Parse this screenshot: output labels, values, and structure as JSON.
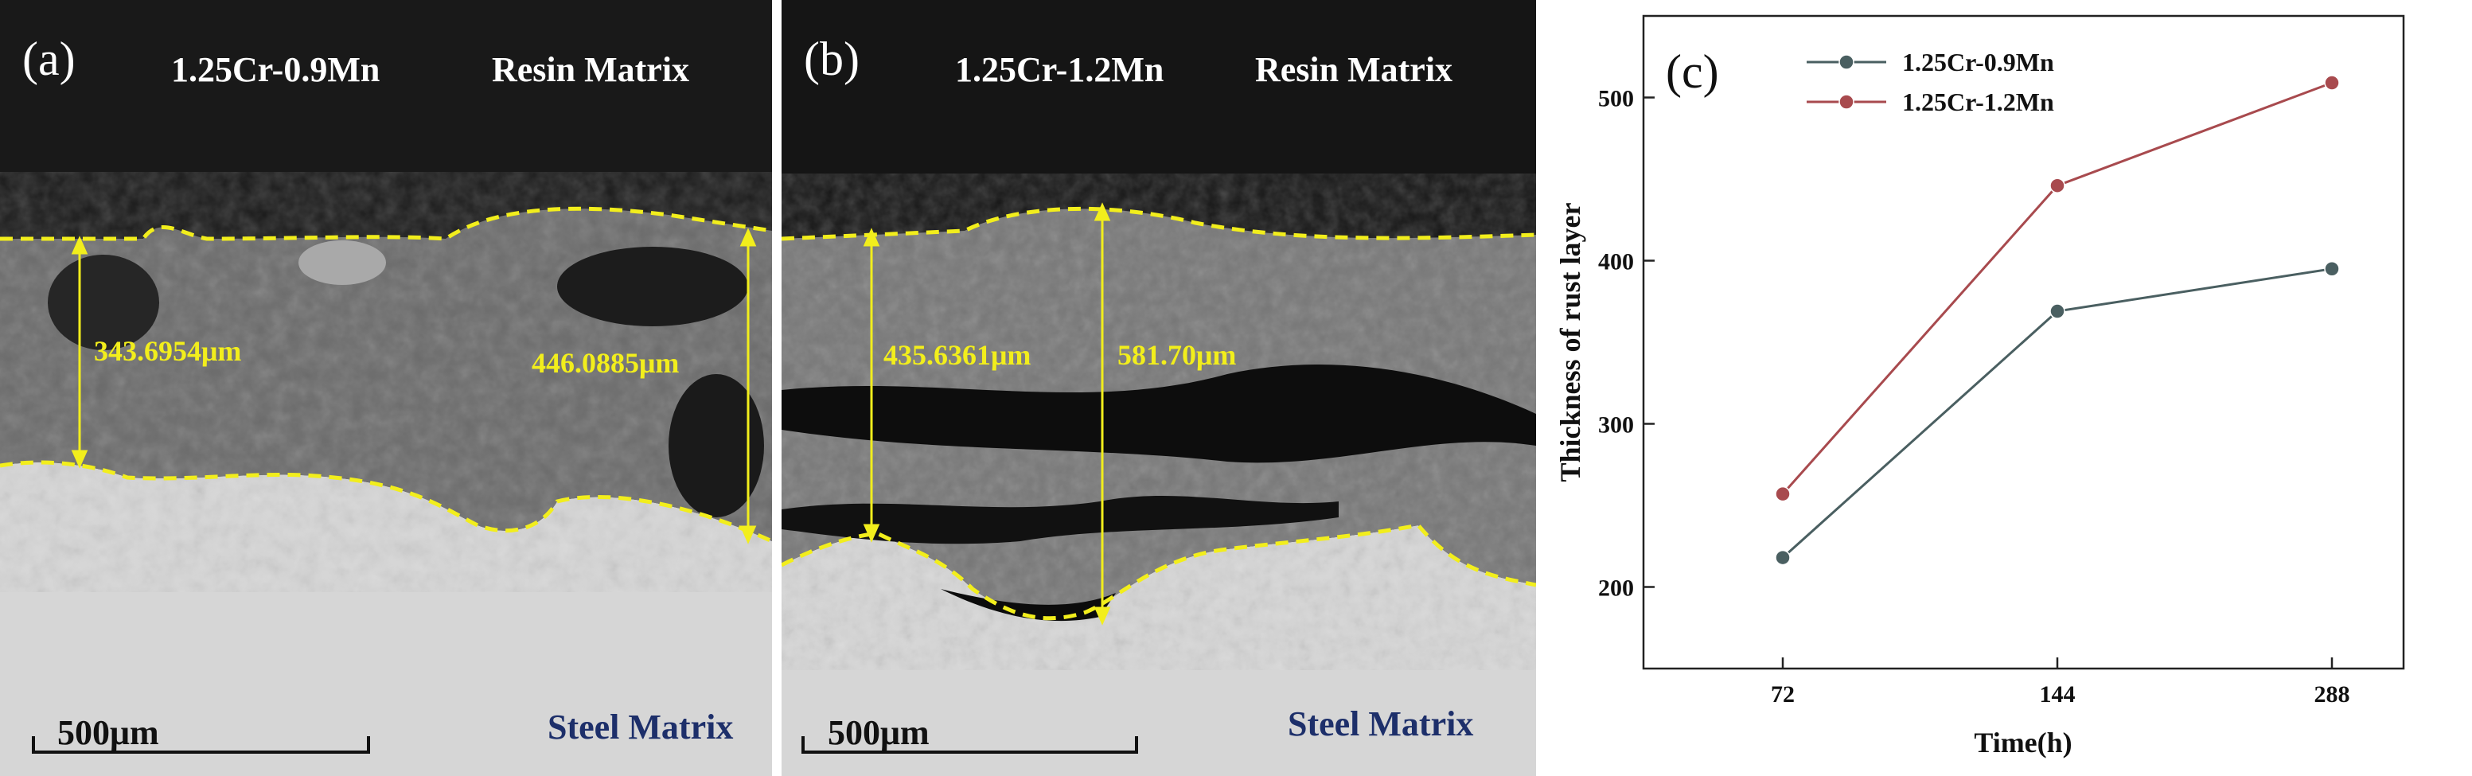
{
  "panels": {
    "a": {
      "tag": "(a)",
      "alloy": "1.25Cr-0.9Mn",
      "top_label": "Resin Matrix",
      "bottom_label": "Steel Matrix",
      "scale_bar": "500μm",
      "measurements": [
        "343.6954μm",
        "446.0885μm"
      ]
    },
    "b": {
      "tag": "(b)",
      "alloy": "1.25Cr-1.2Mn",
      "top_label": "Resin Matrix",
      "bottom_label": "Steel Matrix",
      "scale_bar": "500μm",
      "measurements": [
        "435.6361μm",
        "581.70μm"
      ]
    }
  },
  "colors": {
    "series_0.9Mn": "#4a5f61",
    "series_1.2Mn": "#a84a4e",
    "boundary": "#f2ee1c"
  },
  "chart_data": {
    "type": "line",
    "tag": "(c)",
    "title": "",
    "xlabel": "Time(h)",
    "ylabel": "Thickness of rust layer",
    "categories": [
      "72",
      "144",
      "288"
    ],
    "ylim": [
      150,
      550
    ],
    "yticks": [
      200,
      300,
      400,
      500
    ],
    "legend": "top-left",
    "series": [
      {
        "name": "1.25Cr-0.9Mn",
        "values": [
          218,
          369,
          395
        ],
        "color": "#4a5f61"
      },
      {
        "name": "1.25Cr-1.2Mn",
        "values": [
          257,
          446,
          509
        ],
        "color": "#a84a4e"
      }
    ]
  }
}
